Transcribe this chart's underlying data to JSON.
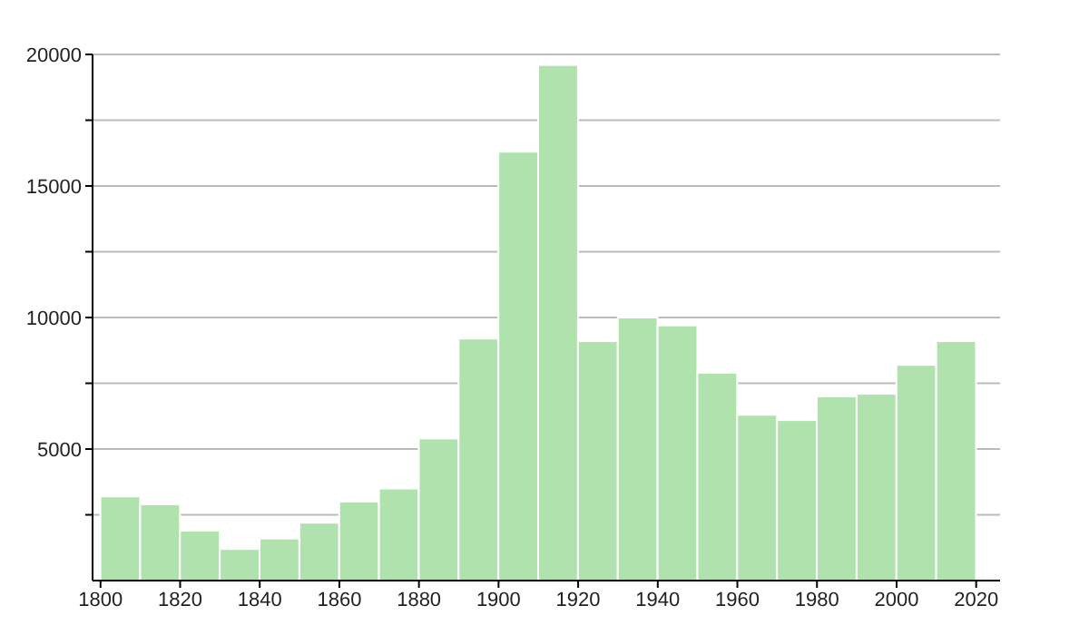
{
  "chart_data": {
    "type": "histogram",
    "bins": [
      1800,
      1810,
      1820,
      1830,
      1840,
      1850,
      1860,
      1870,
      1880,
      1890,
      1900,
      1910,
      1920,
      1930,
      1940,
      1950,
      1960,
      1970,
      1980,
      1990,
      2000,
      2010,
      2020
    ],
    "values": [
      3200,
      2900,
      1900,
      1200,
      1600,
      2200,
      3000,
      3500,
      5400,
      9200,
      16300,
      19600,
      9100,
      10000,
      9700,
      7900,
      6300,
      6100,
      7000,
      7100,
      8200,
      9100
    ],
    "color": "#b0e2ae",
    "xlim": [
      1798,
      2026
    ],
    "xticks": [
      1800,
      1820,
      1840,
      1860,
      1880,
      1900,
      1920,
      1940,
      1960,
      1980,
      2000,
      2020
    ],
    "ylim": [
      0,
      20000
    ],
    "yticks": [
      {
        "value": 2500,
        "label": null
      },
      5000,
      {
        "value": 7500,
        "label": null
      },
      10000,
      {
        "value": 12500,
        "label": null
      },
      15000,
      {
        "value": 17500,
        "label": null
      },
      20000
    ],
    "grid": "y",
    "legend": false
  }
}
